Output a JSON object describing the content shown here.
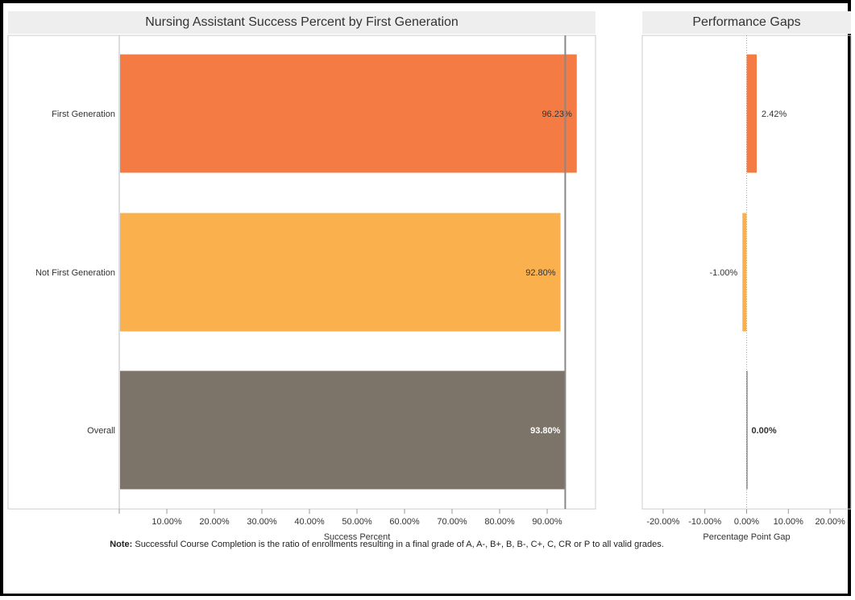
{
  "chart_data": [
    {
      "type": "bar",
      "orientation": "horizontal",
      "title": "Nursing Assistant Success Percent by First Generation",
      "xlabel": "Success Percent",
      "categories": [
        "First Generation",
        "Not First Generation",
        "Overall"
      ],
      "values": [
        96.23,
        92.8,
        93.8
      ],
      "value_labels": [
        "96.23%",
        "92.80%",
        "93.80%"
      ],
      "colors": [
        "#f47c44",
        "#f9b04d",
        "#7c7369"
      ],
      "label_colors": [
        "#333333",
        "#333333",
        "#ffffff"
      ],
      "reference_line": 93.8,
      "xlim": [
        0,
        100
      ],
      "x_ticks": [
        10,
        20,
        30,
        40,
        50,
        60,
        70,
        80,
        90
      ],
      "x_tick_labels": [
        "10.00%",
        "20.00%",
        "30.00%",
        "40.00%",
        "50.00%",
        "60.00%",
        "70.00%",
        "80.00%",
        "90.00%"
      ]
    },
    {
      "type": "bar",
      "orientation": "horizontal",
      "title": "Performance Gaps",
      "xlabel": "Percentage Point Gap",
      "categories": [
        "First Generation",
        "Not First Generation",
        "Overall"
      ],
      "values": [
        2.42,
        -1.0,
        0.0
      ],
      "value_labels": [
        "2.42%",
        "-1.00%",
        "0.00%"
      ],
      "colors": [
        "#f47c44",
        "#f9b04d",
        "#7c7369"
      ],
      "xlim": [
        -25,
        25
      ],
      "x_ticks": [
        -20,
        -10,
        0,
        10,
        20
      ],
      "x_tick_labels": [
        "-20.00%",
        "-10.00%",
        "0.00%",
        "10.00%",
        "20.00%"
      ]
    }
  ],
  "note": {
    "label": "Note:",
    "text": " Successful Course Completion is the ratio of enrollments resulting in a final grade of A, A-, B+, B, B-, C+, C, CR or P to all valid grades."
  }
}
